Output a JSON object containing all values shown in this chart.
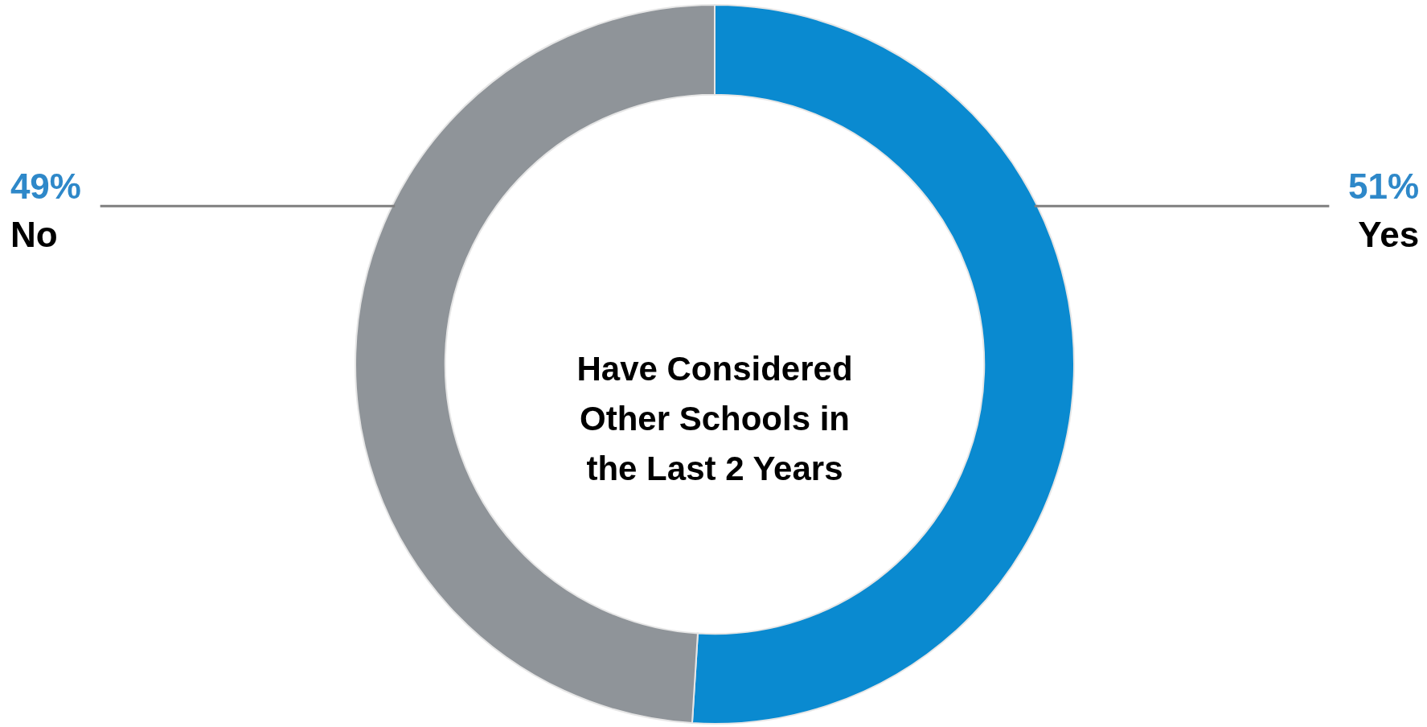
{
  "chart_data": {
    "type": "donut",
    "title": "Have Considered Other Schools in the Last 2 Years",
    "categories": [
      "Yes",
      "No"
    ],
    "values": [
      51,
      49
    ],
    "colors": [
      "#0a8ad0",
      "#8f9499"
    ],
    "value_labels": [
      "51%",
      "49%"
    ]
  }
}
